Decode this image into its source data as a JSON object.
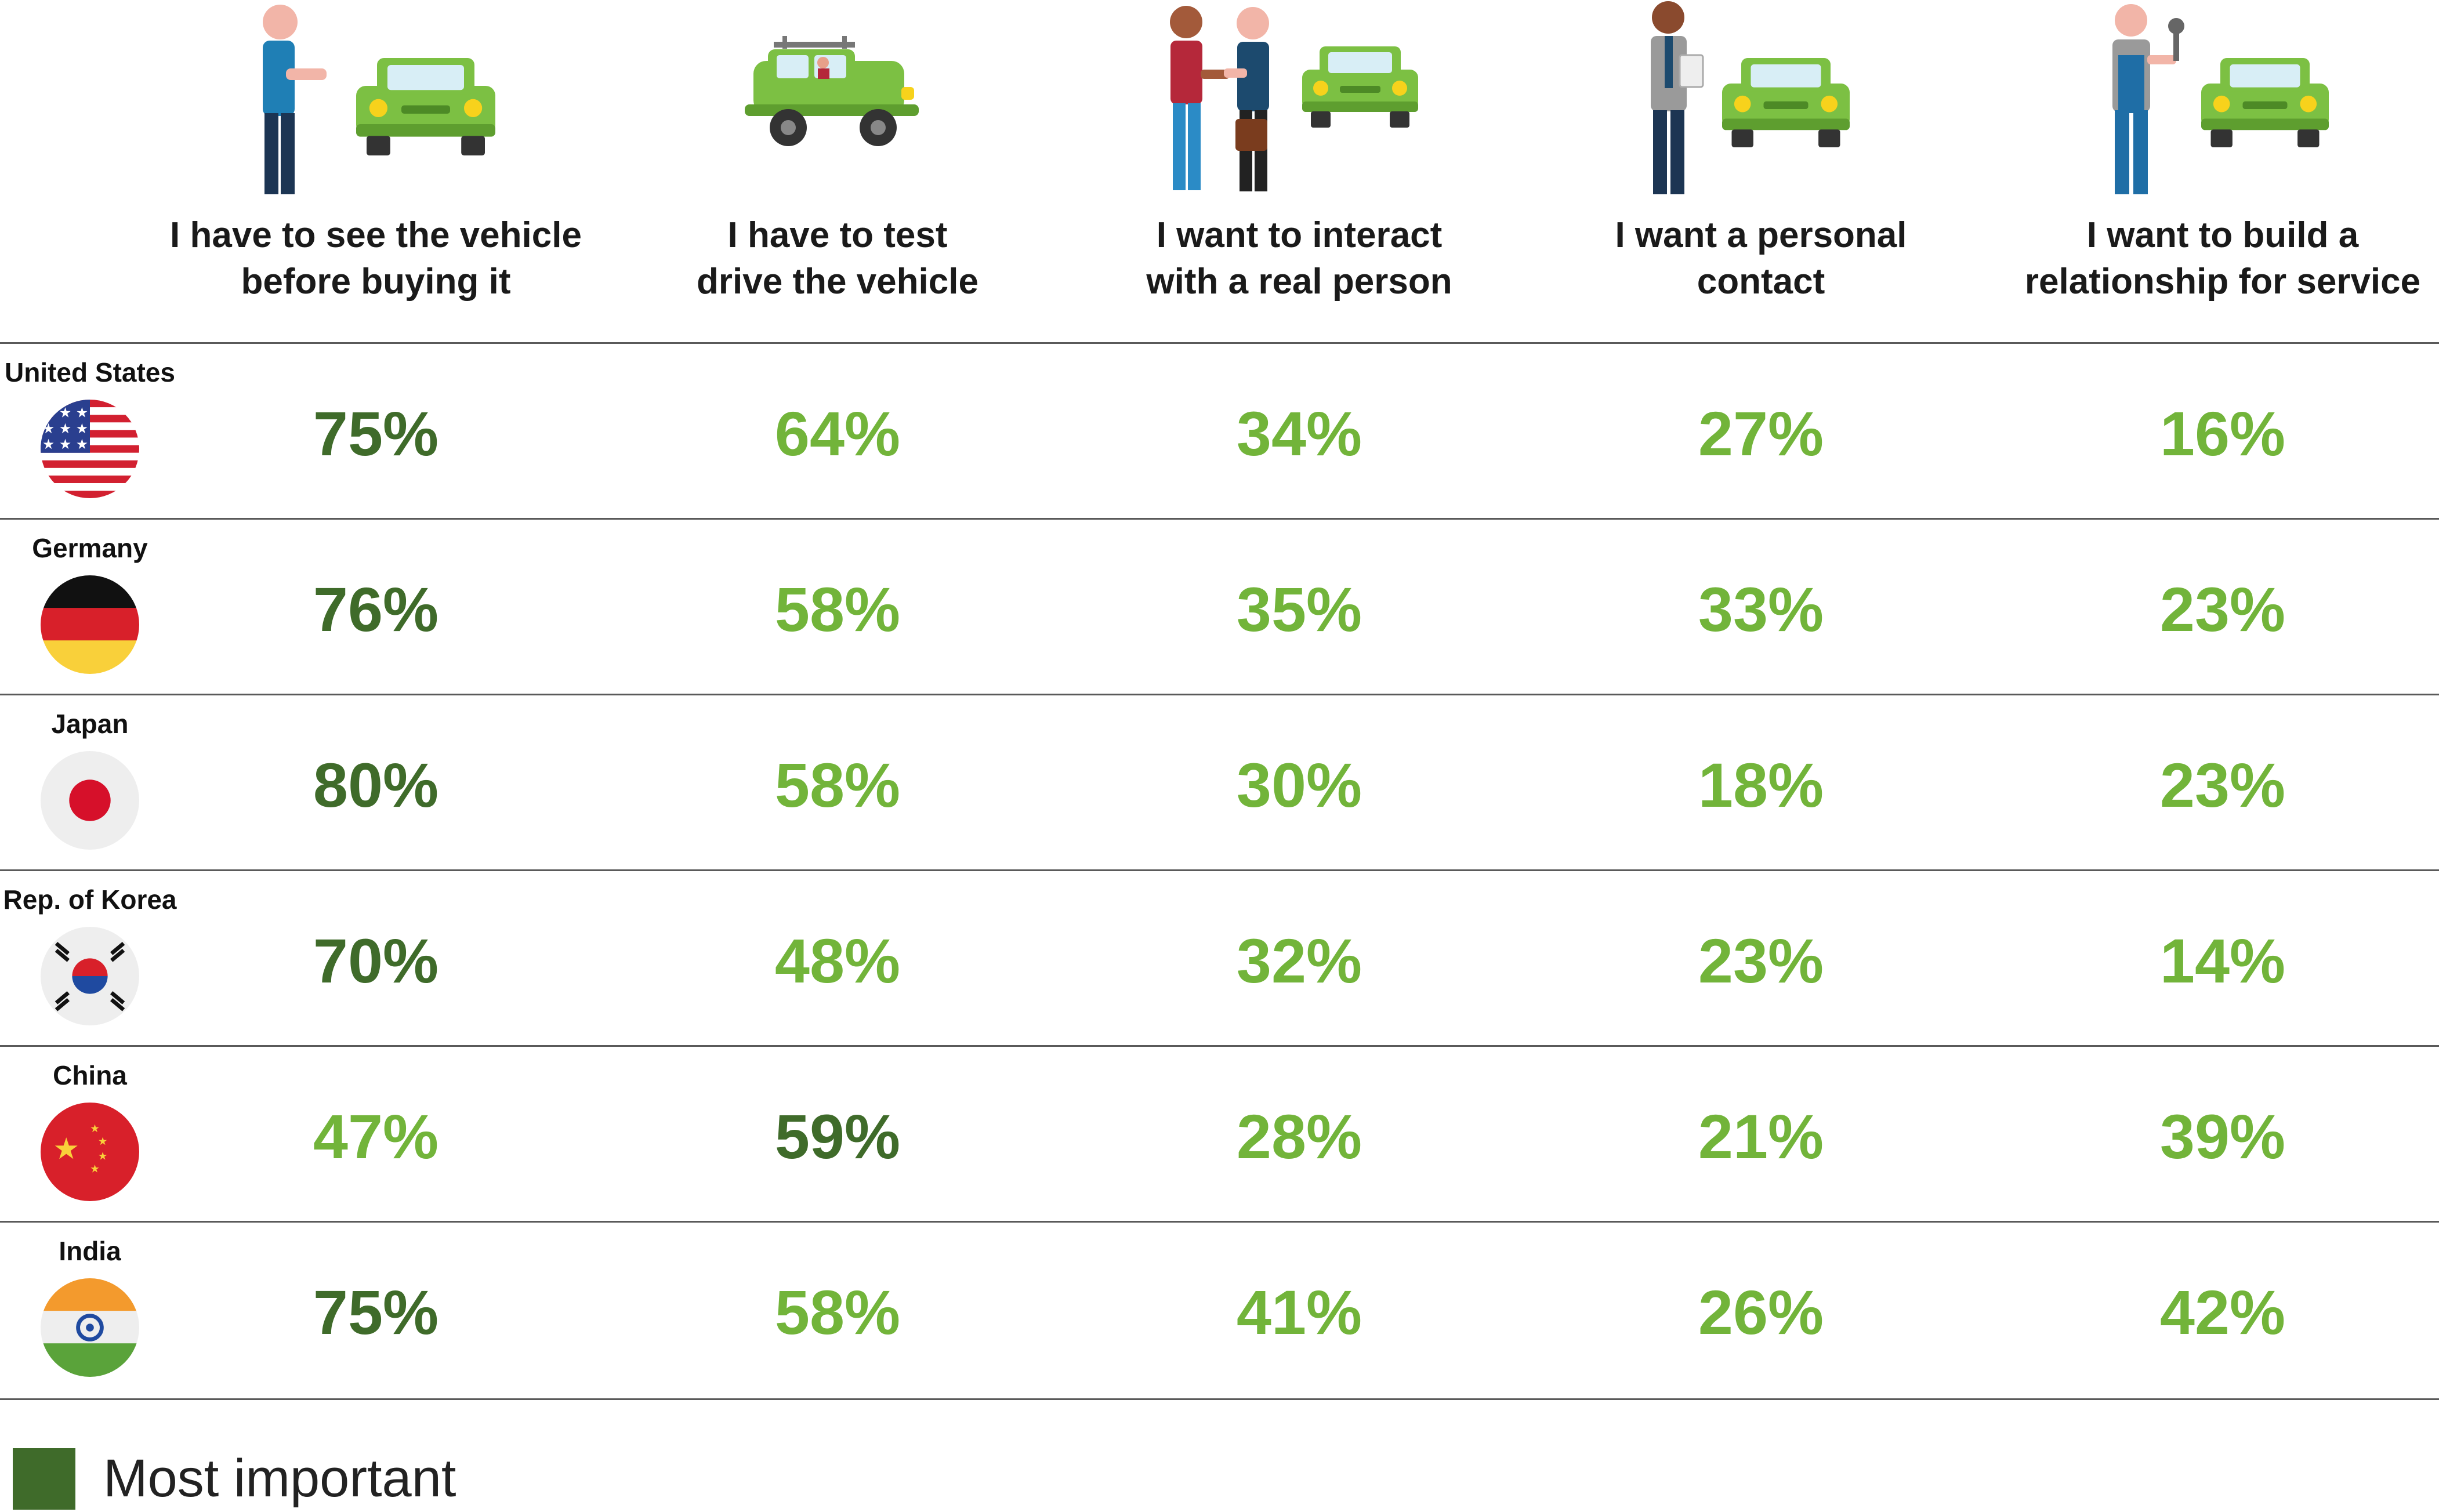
{
  "chart_data": {
    "type": "table",
    "columns": [
      {
        "line1": "I have to see the vehicle",
        "line2": "before buying it",
        "icon": "person-beside-car-icon"
      },
      {
        "line1": "I have to test",
        "line2": "drive the vehicle",
        "icon": "person-driving-car-icon"
      },
      {
        "line1": "I want to interact",
        "line2": "with a real person",
        "icon": "handshake-with-seller-icon"
      },
      {
        "line1": "I want a personal",
        "line2": "contact",
        "icon": "salesperson-with-clipboard-icon"
      },
      {
        "line1": "I want to build a",
        "line2": "relationship for service",
        "icon": "mechanic-with-wrench-icon"
      }
    ],
    "rows": [
      {
        "country": "United States",
        "flag": "us-flag-icon",
        "values": [
          75,
          64,
          34,
          27,
          16
        ],
        "labels": [
          "75%",
          "64%",
          "34%",
          "27%",
          "16%"
        ],
        "most_important_index": 0
      },
      {
        "country": "Germany",
        "flag": "germany-flag-icon",
        "values": [
          76,
          58,
          35,
          33,
          23
        ],
        "labels": [
          "76%",
          "58%",
          "35%",
          "33%",
          "23%"
        ],
        "most_important_index": 0
      },
      {
        "country": "Japan",
        "flag": "japan-flag-icon",
        "values": [
          80,
          58,
          30,
          18,
          23
        ],
        "labels": [
          "80%",
          "58%",
          "30%",
          "18%",
          "23%"
        ],
        "most_important_index": 0
      },
      {
        "country": "Rep. of Korea",
        "flag": "korea-flag-icon",
        "values": [
          70,
          48,
          32,
          23,
          14
        ],
        "labels": [
          "70%",
          "48%",
          "32%",
          "23%",
          "14%"
        ],
        "most_important_index": 0
      },
      {
        "country": "China",
        "flag": "china-flag-icon",
        "values": [
          47,
          59,
          28,
          21,
          39
        ],
        "labels": [
          "47%",
          "59%",
          "28%",
          "21%",
          "39%"
        ],
        "most_important_index": 1
      },
      {
        "country": "India",
        "flag": "india-flag-icon",
        "values": [
          75,
          58,
          41,
          26,
          42
        ],
        "labels": [
          "75%",
          "58%",
          "41%",
          "26%",
          "42%"
        ],
        "most_important_index": 0
      }
    ],
    "legend": {
      "label": "Most important"
    },
    "colors": {
      "most_important": "#3f6b2a",
      "other": "#72b43a"
    }
  }
}
